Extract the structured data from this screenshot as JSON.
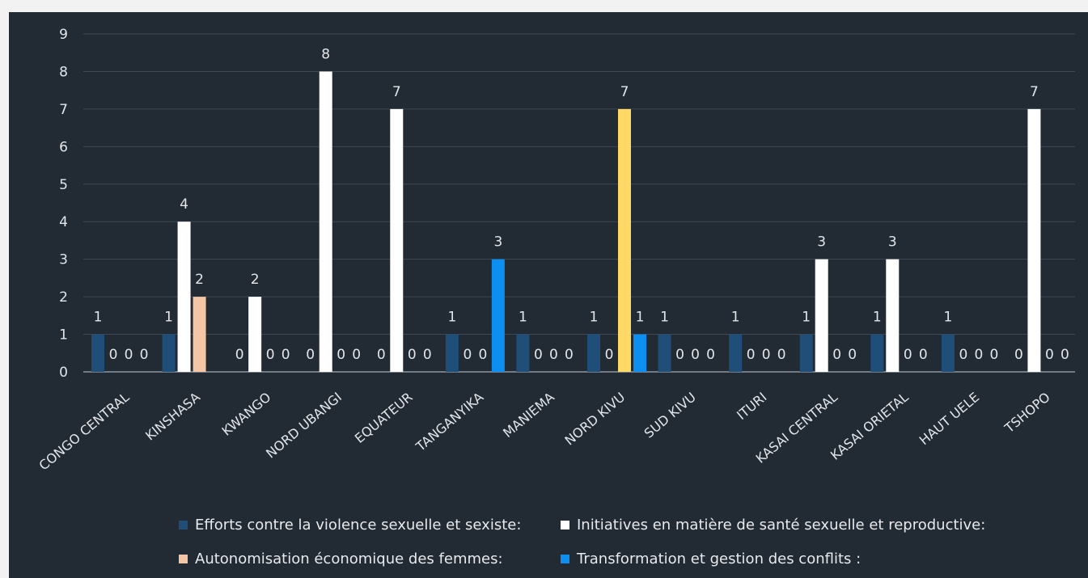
{
  "chart_data": {
    "type": "bar",
    "title": "",
    "xlabel": "",
    "ylabel": "",
    "ylim": [
      0,
      9
    ],
    "yticks": [
      0,
      1,
      2,
      3,
      4,
      5,
      6,
      7,
      8,
      9
    ],
    "grid": true,
    "legend_position": "bottom",
    "categories": [
      "CONGO CENTRAL",
      "KINSHASA",
      "KWANGO",
      "NORD UBANGI",
      "EQUATEUR",
      "TANGANYIKA",
      "MANIEMA",
      "NORD KIVU",
      "SUD KIVU",
      "ITURI",
      "KASAI CENTRAL",
      "KASAI ORIETAL",
      "HAUT UELE",
      "TSHOPO"
    ],
    "series": [
      {
        "name": "Efforts contre la violence sexuelle et sexiste:",
        "color": "#1f4e79",
        "values": [
          1,
          1,
          0,
          0,
          0,
          1,
          1,
          1,
          1,
          1,
          1,
          1,
          1,
          0
        ],
        "labels": [
          "1",
          "1",
          "0",
          "0",
          "0",
          "1",
          "1",
          "1",
          "1",
          "1",
          "1",
          "1",
          "1",
          "0"
        ]
      },
      {
        "name": "Initiatives en matière de santé sexuelle et reproductive:",
        "color": "#ffffff",
        "values": [
          0,
          4,
          2,
          8,
          7,
          0,
          0,
          0,
          0,
          0,
          3,
          3,
          0,
          7
        ],
        "labels": [
          "0",
          "4",
          "2",
          "8",
          "7",
          "0",
          "0",
          "0",
          "0",
          "0",
          "3",
          "3",
          "0",
          "7"
        ]
      },
      {
        "name": "Autonomisation économique des femmes:",
        "color": "#f5c6a5",
        "values": [
          0,
          2,
          0,
          0,
          0,
          0,
          0,
          7,
          0,
          0,
          0,
          0,
          0,
          0
        ],
        "labels": [
          "0",
          "2",
          "0",
          "0",
          "0",
          "0",
          "0",
          "7",
          "0",
          "0",
          "0",
          "0",
          "0",
          "0"
        ]
      },
      {
        "name": "Transformation et gestion des conflits :",
        "color": "#0d8ff2",
        "values": [
          0,
          0,
          0,
          0,
          0,
          3,
          0,
          1,
          0,
          0,
          0,
          0,
          0,
          0
        ],
        "labels": [
          "0",
          "",
          "0",
          "0",
          "0",
          "3",
          "0",
          "1",
          "0",
          "0",
          "0",
          "0",
          "0",
          "0"
        ]
      }
    ],
    "series_color_overrides": {
      "2-7": "#ffd966"
    }
  }
}
